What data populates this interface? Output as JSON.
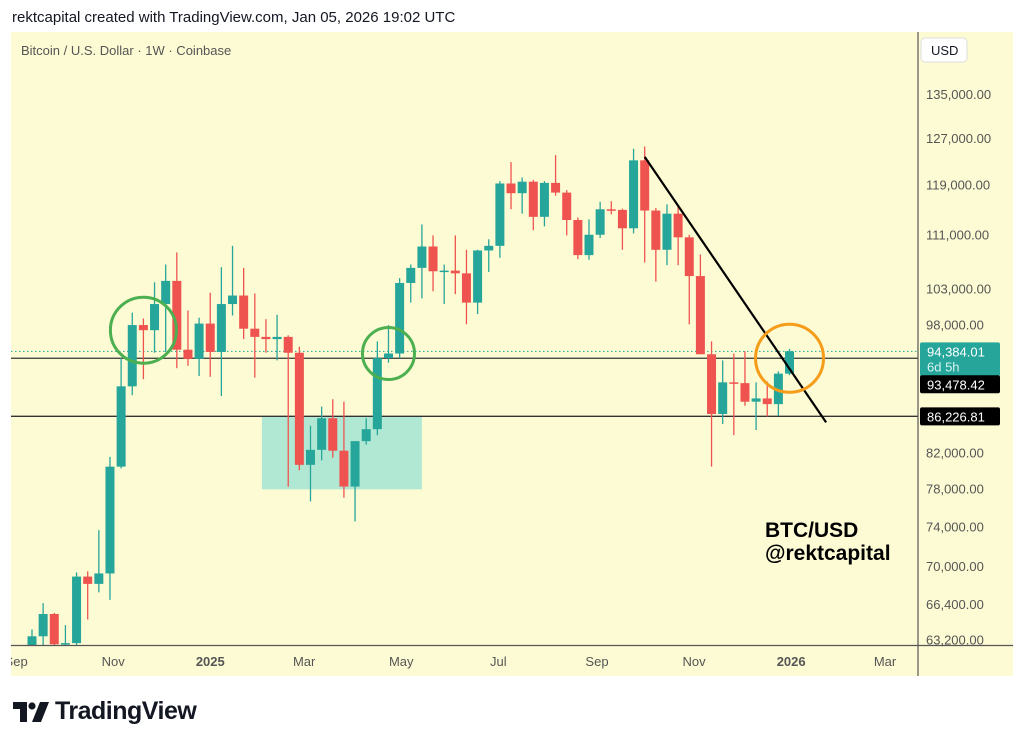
{
  "header": {
    "text": "rektcapital created with TradingView.com, Jan 05, 2026 19:02 UTC"
  },
  "legend": {
    "symbol": "Bitcoin / U.S. Dollar · 1W · Coinbase"
  },
  "currency_button": "USD",
  "watermark": {
    "line1": "BTC/USD",
    "line2": "@rektcapital"
  },
  "logo": {
    "text": "TradingView"
  },
  "colors": {
    "up": "#26a69a",
    "down": "#ef5350",
    "background": "#fdfbd4",
    "support_box": "#a8e6d4",
    "green_circle": "#4caf50",
    "orange_circle": "#f59c1a",
    "trendline": "#000000"
  },
  "chart_data": {
    "type": "candlestick",
    "interval": "1W",
    "y_scale": "log",
    "ylim": [
      63200,
      135000
    ],
    "grid": false,
    "y_ticks": [
      "135,000.00",
      "127,000.00",
      "119,000.00",
      "111,000.00",
      "103,000.00",
      "98,000.00",
      "82,000.00",
      "78,000.00",
      "74,000.00",
      "70,000.00",
      "66,400.00",
      "63,200.00"
    ],
    "x_ticks": [
      {
        "label": "Sep",
        "date": "2024-09-01",
        "bold": false
      },
      {
        "label": "Nov",
        "date": "2024-11-01",
        "bold": false
      },
      {
        "label": "2025",
        "date": "2025-01-01",
        "bold": true
      },
      {
        "label": "Mar",
        "date": "2025-03-01",
        "bold": false
      },
      {
        "label": "May",
        "date": "2025-05-01",
        "bold": false
      },
      {
        "label": "Jul",
        "date": "2025-07-01",
        "bold": false
      },
      {
        "label": "Sep",
        "date": "2025-09-01",
        "bold": false
      },
      {
        "label": "Nov",
        "date": "2025-11-01",
        "bold": false
      },
      {
        "label": "2026",
        "date": "2026-01-01",
        "bold": true
      },
      {
        "label": "Mar",
        "date": "2026-03-01",
        "bold": false
      }
    ],
    "columns": [
      "week",
      "open",
      "high",
      "low",
      "close"
    ],
    "candles": [
      [
        "2024-09-16",
        59100,
        64100,
        57500,
        63500
      ],
      [
        "2024-09-23",
        63500,
        66500,
        62700,
        65500
      ],
      [
        "2024-09-30",
        65500,
        65600,
        59800,
        62800
      ],
      [
        "2024-10-07",
        62800,
        64500,
        58900,
        62900
      ],
      [
        "2024-10-14",
        62900,
        69400,
        62400,
        69000
      ],
      [
        "2024-10-21",
        69000,
        69500,
        65000,
        68300
      ],
      [
        "2024-10-28",
        68300,
        73600,
        67500,
        69300
      ],
      [
        "2024-11-04",
        69300,
        81500,
        66800,
        80400
      ],
      [
        "2024-11-11",
        80400,
        93500,
        80200,
        89900
      ],
      [
        "2024-11-18",
        89900,
        99600,
        88800,
        97900
      ],
      [
        "2024-11-25",
        97900,
        98800,
        90800,
        97200
      ],
      [
        "2024-12-02",
        97200,
        103900,
        94200,
        100800
      ],
      [
        "2024-12-09",
        100800,
        106500,
        94300,
        104100
      ],
      [
        "2024-12-16",
        104100,
        108300,
        92200,
        94600
      ],
      [
        "2024-12-23",
        94600,
        99900,
        92500,
        93400
      ],
      [
        "2024-12-30",
        93400,
        98900,
        91200,
        98100
      ],
      [
        "2025-01-06",
        98100,
        102400,
        91100,
        94300
      ],
      [
        "2025-01-13",
        94300,
        106100,
        88700,
        100800
      ],
      [
        "2025-01-20",
        100800,
        109300,
        99200,
        102000
      ],
      [
        "2025-01-27",
        102000,
        106000,
        96000,
        97400
      ],
      [
        "2025-02-03",
        97400,
        102300,
        91000,
        96300
      ],
      [
        "2025-02-10",
        96300,
        98700,
        94200,
        96000
      ],
      [
        "2025-02-17",
        96000,
        99300,
        93200,
        96300
      ],
      [
        "2025-02-24",
        96300,
        96500,
        78200,
        94200
      ],
      [
        "2025-03-03",
        94200,
        95000,
        80000,
        80600
      ],
      [
        "2025-03-10",
        80600,
        85100,
        76600,
        82300
      ],
      [
        "2025-03-17",
        82300,
        87400,
        81100,
        86000
      ],
      [
        "2025-03-24",
        86000,
        88300,
        81400,
        82200
      ],
      [
        "2025-03-31",
        82200,
        88000,
        77000,
        78200
      ],
      [
        "2025-04-07",
        78200,
        83300,
        74500,
        83300
      ],
      [
        "2025-04-14",
        83300,
        86000,
        82900,
        84700
      ],
      [
        "2025-04-21",
        84700,
        95700,
        84000,
        93500
      ],
      [
        "2025-04-28",
        93500,
        97900,
        92900,
        94100
      ],
      [
        "2025-05-05",
        94100,
        104500,
        93500,
        103800
      ],
      [
        "2025-05-12",
        103800,
        106500,
        101000,
        106000
      ],
      [
        "2025-05-19",
        106000,
        112600,
        101600,
        109200
      ],
      [
        "2025-05-26",
        109200,
        110900,
        102600,
        105500
      ],
      [
        "2025-06-02",
        105500,
        106500,
        100800,
        105600
      ],
      [
        "2025-06-09",
        105600,
        110900,
        102200,
        105200
      ],
      [
        "2025-06-16",
        105200,
        108700,
        98000,
        101000
      ],
      [
        "2025-06-23",
        101000,
        108700,
        99400,
        108600
      ],
      [
        "2025-06-30",
        108600,
        110300,
        105400,
        109300
      ],
      [
        "2025-07-07",
        109300,
        119600,
        107500,
        119200
      ],
      [
        "2025-07-14",
        119200,
        122800,
        115000,
        117600
      ],
      [
        "2025-07-21",
        117600,
        120200,
        114300,
        119500
      ],
      [
        "2025-07-28",
        119500,
        119800,
        111700,
        113800
      ],
      [
        "2025-08-04",
        113800,
        119600,
        112300,
        119300
      ],
      [
        "2025-08-11",
        119300,
        124000,
        117200,
        117700
      ],
      [
        "2025-08-18",
        117700,
        118100,
        110900,
        113300
      ],
      [
        "2025-08-25",
        113300,
        113700,
        107300,
        107900
      ],
      [
        "2025-09-01",
        107900,
        113400,
        107200,
        111000
      ],
      [
        "2025-09-08",
        111000,
        116200,
        110500,
        115000
      ],
      [
        "2025-09-15",
        115000,
        116300,
        114200,
        114900
      ],
      [
        "2025-09-22",
        114900,
        115100,
        108700,
        112000
      ],
      [
        "2025-09-29",
        112000,
        125100,
        111200,
        123100
      ],
      [
        "2025-10-06",
        123100,
        125500,
        106800,
        114800
      ],
      [
        "2025-10-13",
        114800,
        115200,
        104000,
        108700
      ],
      [
        "2025-10-20",
        108700,
        115800,
        106400,
        114300
      ],
      [
        "2025-10-27",
        114300,
        115500,
        106400,
        110600
      ],
      [
        "2025-11-03",
        110600,
        111000,
        98000,
        104800
      ],
      [
        "2025-11-10",
        104800,
        108000,
        94000,
        94000
      ],
      [
        "2025-11-17",
        94000,
        95700,
        80400,
        86500
      ],
      [
        "2025-11-24",
        86500,
        93200,
        85300,
        90400
      ],
      [
        "2025-12-01",
        90400,
        94100,
        84000,
        90300
      ],
      [
        "2025-12-08",
        90300,
        94400,
        87500,
        88000
      ],
      [
        "2025-12-15",
        88000,
        90400,
        84600,
        88400
      ],
      [
        "2025-12-22",
        88400,
        90500,
        86200,
        87700
      ],
      [
        "2025-12-29",
        87700,
        91800,
        86300,
        91500
      ],
      [
        "2026-01-05",
        91500,
        94700,
        91300,
        94384.01
      ]
    ],
    "price_labels": [
      {
        "value": 94384.01,
        "text": "94,384.01",
        "sub": "6d 5h",
        "style": "last-price"
      },
      {
        "value": 93478.42,
        "text": "93,478.42",
        "style": "horizontal-line"
      },
      {
        "value": 86226.81,
        "text": "86,226.81",
        "style": "horizontal-line"
      }
    ],
    "annotations": {
      "horizontal_lines": [
        93478.42,
        86226.81
      ],
      "trendline": {
        "from": [
          "2025-10-06",
          123700
        ],
        "to": [
          "2026-01-28",
          85500
        ]
      },
      "support_box": {
        "from_date": "2025-02-10",
        "to_date": "2025-05-19",
        "top": 86226.81,
        "bottom": 77900
      },
      "circles": [
        {
          "color": "green",
          "date": "2024-11-25",
          "price": 97200
        },
        {
          "color": "green",
          "date": "2025-04-28",
          "price": 94100
        },
        {
          "color": "orange",
          "date": "2026-01-05",
          "price": 93478.42
        }
      ]
    }
  }
}
